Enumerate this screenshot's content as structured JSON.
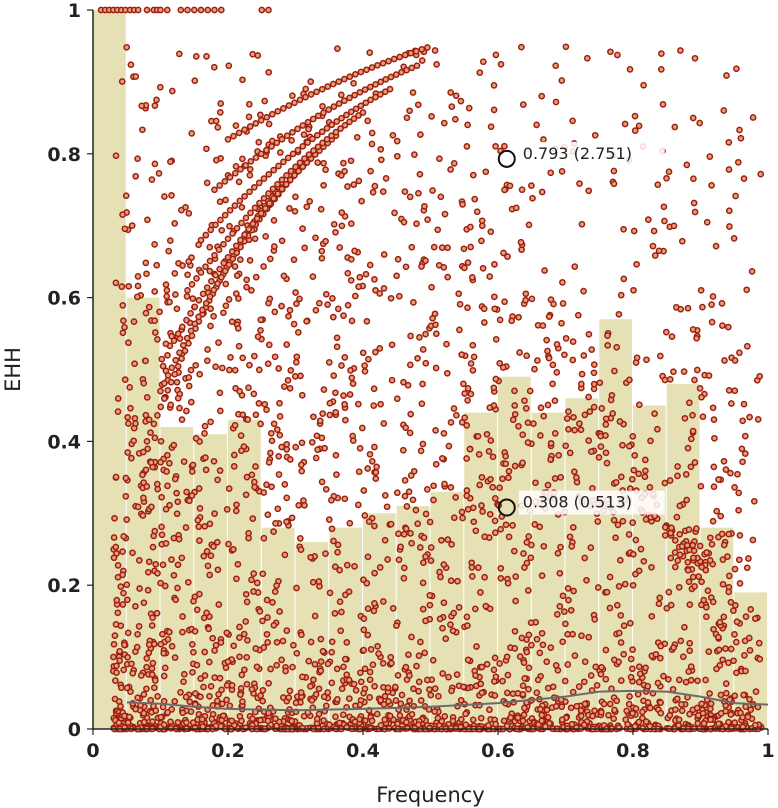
{
  "chart_data": {
    "type": "scatter",
    "title": "",
    "xlabel": "Frequency",
    "ylabel": "EHH",
    "xlim": [
      0,
      1
    ],
    "ylim": [
      0,
      1
    ],
    "grid": false,
    "xticks": [
      "0",
      "0.2",
      "0.4",
      "0.6",
      "0.8",
      "1"
    ],
    "yticks": [
      "0",
      "0.2",
      "0.4",
      "0.6",
      "0.8",
      "1"
    ],
    "colors": {
      "bar": "#e5e1b5",
      "point_stroke": "#9c1f10",
      "point_fill": "#e6a07a",
      "line": "#6b6b6b",
      "axis": "#222222"
    },
    "histogram": [
      {
        "x0": 0.0,
        "x1": 0.05,
        "value": 1.0
      },
      {
        "x0": 0.05,
        "x1": 0.1,
        "value": 0.6
      },
      {
        "x0": 0.1,
        "x1": 0.15,
        "value": 0.42
      },
      {
        "x0": 0.15,
        "x1": 0.2,
        "value": 0.41
      },
      {
        "x0": 0.2,
        "x1": 0.25,
        "value": 0.43
      },
      {
        "x0": 0.25,
        "x1": 0.3,
        "value": 0.28
      },
      {
        "x0": 0.3,
        "x1": 0.35,
        "value": 0.26
      },
      {
        "x0": 0.35,
        "x1": 0.4,
        "value": 0.28
      },
      {
        "x0": 0.4,
        "x1": 0.45,
        "value": 0.3
      },
      {
        "x0": 0.45,
        "x1": 0.5,
        "value": 0.31
      },
      {
        "x0": 0.5,
        "x1": 0.55,
        "value": 0.33
      },
      {
        "x0": 0.55,
        "x1": 0.6,
        "value": 0.44
      },
      {
        "x0": 0.6,
        "x1": 0.65,
        "value": 0.49
      },
      {
        "x0": 0.65,
        "x1": 0.7,
        "value": 0.44
      },
      {
        "x0": 0.7,
        "x1": 0.75,
        "value": 0.46
      },
      {
        "x0": 0.75,
        "x1": 0.8,
        "value": 0.57
      },
      {
        "x0": 0.8,
        "x1": 0.85,
        "value": 0.45
      },
      {
        "x0": 0.85,
        "x1": 0.9,
        "value": 0.48
      },
      {
        "x0": 0.9,
        "x1": 0.95,
        "value": 0.28
      },
      {
        "x0": 0.95,
        "x1": 1.0,
        "value": 0.19
      }
    ],
    "mean_line": [
      [
        0.05,
        0.037
      ],
      [
        0.1,
        0.035
      ],
      [
        0.15,
        0.031
      ],
      [
        0.2,
        0.028
      ],
      [
        0.3,
        0.026
      ],
      [
        0.4,
        0.028
      ],
      [
        0.5,
        0.031
      ],
      [
        0.6,
        0.036
      ],
      [
        0.7,
        0.045
      ],
      [
        0.75,
        0.052
      ],
      [
        0.8,
        0.053
      ],
      [
        0.85,
        0.052
      ],
      [
        0.9,
        0.045
      ],
      [
        0.95,
        0.036
      ],
      [
        1.0,
        0.034
      ]
    ],
    "scatter_density": {
      "note": "",
      "frequency_range": [
        0.0,
        1.0
      ]
    },
    "highlighted_points": [
      {
        "x": 0.613,
        "y": 0.793,
        "label": "0.793 (2.751)"
      },
      {
        "x": 0.613,
        "y": 0.308,
        "label": "0.308 (0.513)"
      }
    ],
    "top_row_points": [
      0.012,
      0.018,
      0.024,
      0.03,
      0.036,
      0.042,
      0.048,
      0.055,
      0.061,
      0.067,
      0.08,
      0.09,
      0.095,
      0.1,
      0.11,
      0.13,
      0.14,
      0.15,
      0.16,
      0.17,
      0.18,
      0.19,
      0.25,
      0.26
    ]
  }
}
